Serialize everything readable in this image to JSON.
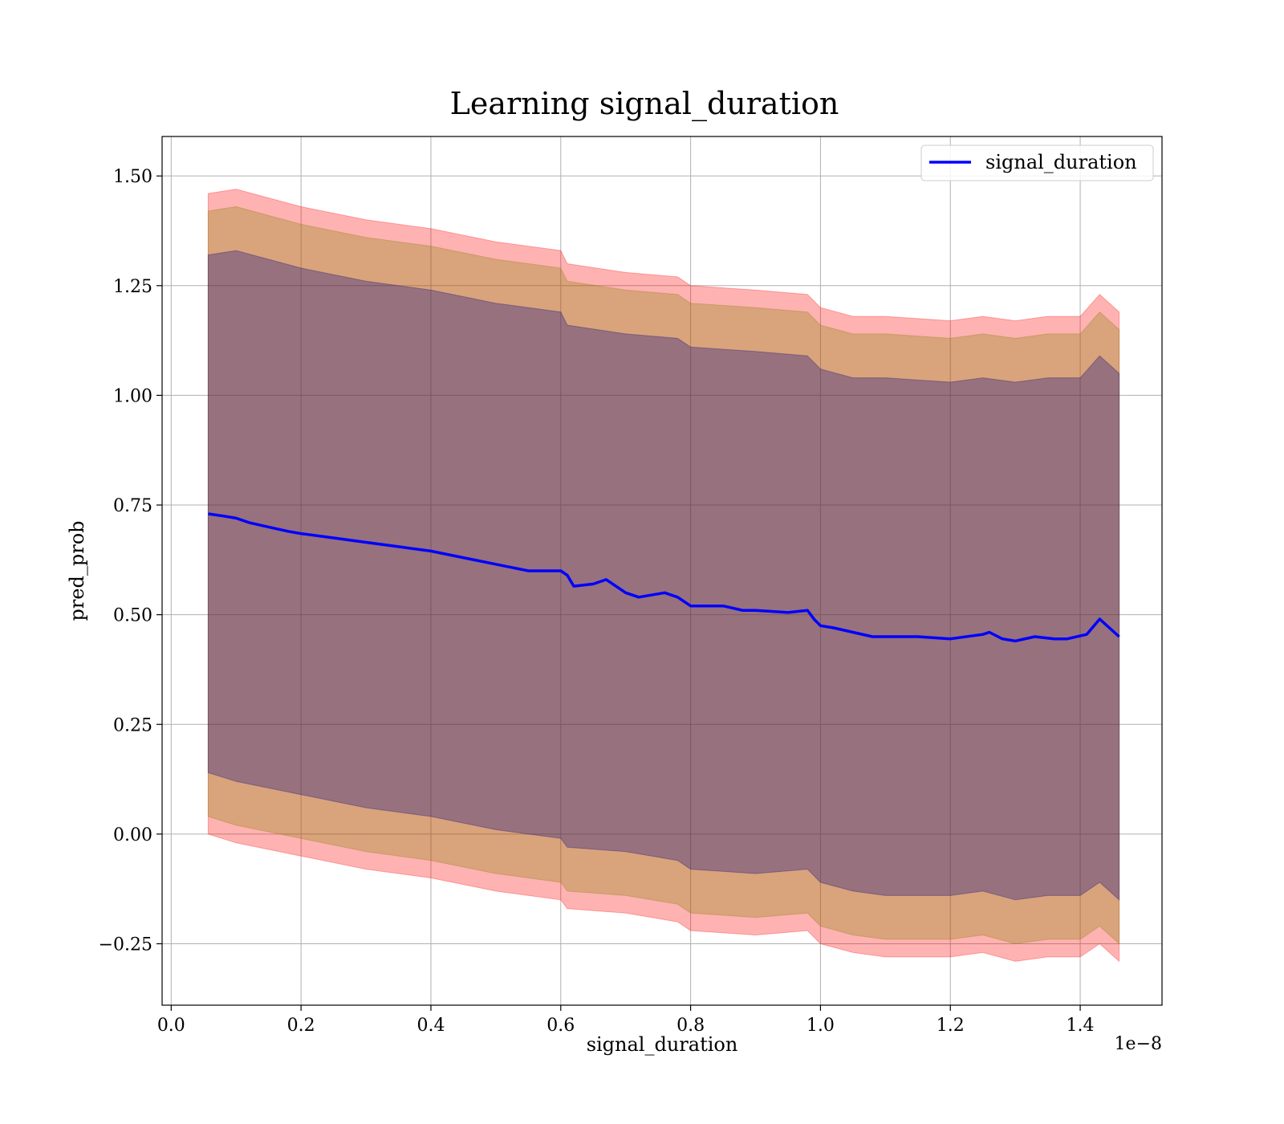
{
  "chart_data": {
    "type": "line",
    "title": "Learning signal_duration",
    "xlabel": "signal_duration",
    "ylabel": "pred_prob",
    "x_offset_label": "1e−8",
    "xlim": [
      -0.014,
      1.526
    ],
    "ylim": [
      -0.39,
      1.59
    ],
    "x_ticks": [
      0.0,
      0.2,
      0.4,
      0.6,
      0.8,
      1.0,
      1.2,
      1.4
    ],
    "x_tick_labels": [
      "0.0",
      "0.2",
      "0.4",
      "0.6",
      "0.8",
      "1.0",
      "1.2",
      "1.4"
    ],
    "y_ticks": [
      -0.25,
      0.0,
      0.25,
      0.5,
      0.75,
      1.0,
      1.25,
      1.5
    ],
    "y_tick_labels": [
      "−0.25",
      "0.00",
      "0.25",
      "0.50",
      "0.75",
      "1.00",
      "1.25",
      "1.50"
    ],
    "grid": true,
    "legend": {
      "position": "top-right",
      "entries": [
        "signal_duration"
      ]
    },
    "series": [
      {
        "name": "signal_duration",
        "color": "#0000ff",
        "x": [
          0.057,
          0.08,
          0.1,
          0.12,
          0.15,
          0.18,
          0.2,
          0.25,
          0.3,
          0.35,
          0.4,
          0.45,
          0.5,
          0.55,
          0.6,
          0.61,
          0.62,
          0.65,
          0.67,
          0.7,
          0.72,
          0.76,
          0.78,
          0.8,
          0.82,
          0.85,
          0.88,
          0.9,
          0.95,
          0.98,
          0.99,
          1.0,
          1.02,
          1.05,
          1.08,
          1.1,
          1.15,
          1.2,
          1.25,
          1.26,
          1.28,
          1.3,
          1.33,
          1.36,
          1.38,
          1.41,
          1.43,
          1.46
        ],
        "y": [
          0.73,
          0.725,
          0.72,
          0.71,
          0.7,
          0.69,
          0.685,
          0.675,
          0.665,
          0.655,
          0.645,
          0.63,
          0.615,
          0.6,
          0.6,
          0.59,
          0.565,
          0.57,
          0.58,
          0.55,
          0.54,
          0.55,
          0.54,
          0.52,
          0.52,
          0.52,
          0.51,
          0.51,
          0.505,
          0.51,
          0.49,
          0.475,
          0.47,
          0.46,
          0.45,
          0.45,
          0.45,
          0.445,
          0.455,
          0.46,
          0.445,
          0.44,
          0.45,
          0.445,
          0.445,
          0.455,
          0.49,
          0.45
        ]
      }
    ],
    "bands": [
      {
        "name": "outer",
        "color": "#ff0000",
        "opacity": 0.3,
        "x": [
          0.057,
          0.1,
          0.2,
          0.3,
          0.4,
          0.5,
          0.6,
          0.61,
          0.7,
          0.78,
          0.8,
          0.9,
          0.98,
          1.0,
          1.05,
          1.1,
          1.2,
          1.25,
          1.3,
          1.35,
          1.4,
          1.43,
          1.46
        ],
        "lower": [
          0.0,
          -0.02,
          -0.05,
          -0.08,
          -0.1,
          -0.13,
          -0.15,
          -0.17,
          -0.18,
          -0.2,
          -0.22,
          -0.23,
          -0.22,
          -0.25,
          -0.27,
          -0.28,
          -0.28,
          -0.27,
          -0.29,
          -0.28,
          -0.28,
          -0.25,
          -0.29
        ],
        "upper": [
          1.46,
          1.47,
          1.43,
          1.4,
          1.38,
          1.35,
          1.33,
          1.3,
          1.28,
          1.27,
          1.25,
          1.24,
          1.23,
          1.2,
          1.18,
          1.18,
          1.17,
          1.18,
          1.17,
          1.18,
          1.18,
          1.23,
          1.19
        ]
      },
      {
        "name": "middle",
        "color": "#808000",
        "opacity": 0.3,
        "x": [
          0.057,
          0.1,
          0.2,
          0.3,
          0.4,
          0.5,
          0.6,
          0.61,
          0.7,
          0.78,
          0.8,
          0.9,
          0.98,
          1.0,
          1.05,
          1.1,
          1.2,
          1.25,
          1.3,
          1.35,
          1.4,
          1.43,
          1.46
        ],
        "lower": [
          0.04,
          0.02,
          -0.01,
          -0.04,
          -0.06,
          -0.09,
          -0.11,
          -0.13,
          -0.14,
          -0.16,
          -0.18,
          -0.19,
          -0.18,
          -0.21,
          -0.23,
          -0.24,
          -0.24,
          -0.23,
          -0.25,
          -0.24,
          -0.24,
          -0.21,
          -0.25
        ],
        "upper": [
          1.42,
          1.43,
          1.39,
          1.36,
          1.34,
          1.31,
          1.29,
          1.26,
          1.24,
          1.23,
          1.21,
          1.2,
          1.19,
          1.16,
          1.14,
          1.14,
          1.13,
          1.14,
          1.13,
          1.14,
          1.14,
          1.19,
          1.15
        ]
      },
      {
        "name": "inner",
        "color": "#000080",
        "opacity": 0.3,
        "x": [
          0.057,
          0.1,
          0.2,
          0.3,
          0.4,
          0.5,
          0.6,
          0.61,
          0.7,
          0.78,
          0.8,
          0.9,
          0.98,
          1.0,
          1.05,
          1.1,
          1.2,
          1.25,
          1.3,
          1.35,
          1.4,
          1.43,
          1.46
        ],
        "lower": [
          0.14,
          0.12,
          0.09,
          0.06,
          0.04,
          0.01,
          -0.01,
          -0.03,
          -0.04,
          -0.06,
          -0.08,
          -0.09,
          -0.08,
          -0.11,
          -0.13,
          -0.14,
          -0.14,
          -0.13,
          -0.15,
          -0.14,
          -0.14,
          -0.11,
          -0.15
        ],
        "upper": [
          1.32,
          1.33,
          1.29,
          1.26,
          1.24,
          1.21,
          1.19,
          1.16,
          1.14,
          1.13,
          1.11,
          1.1,
          1.09,
          1.06,
          1.04,
          1.04,
          1.03,
          1.04,
          1.03,
          1.04,
          1.04,
          1.09,
          1.05
        ]
      }
    ]
  }
}
